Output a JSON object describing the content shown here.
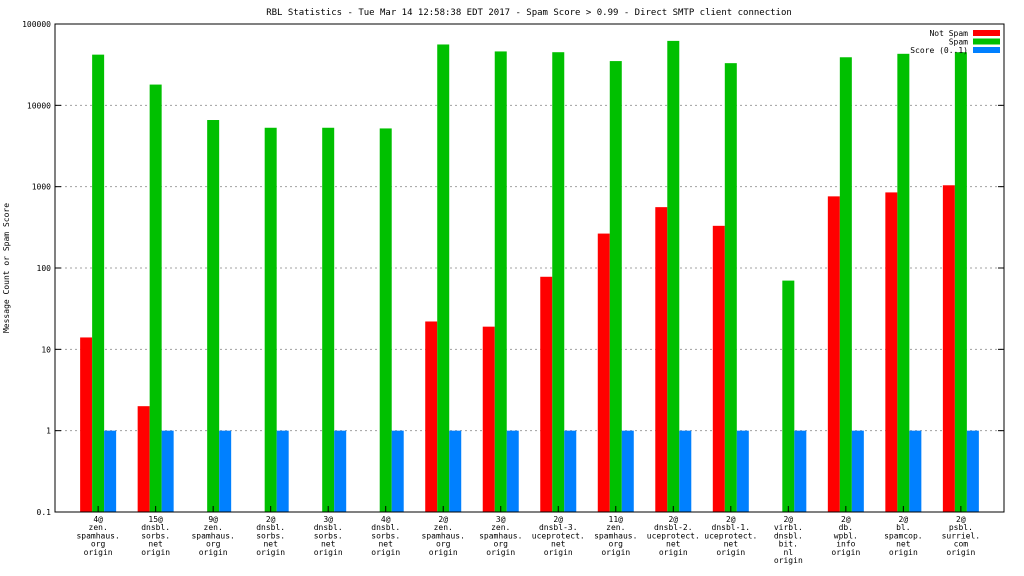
{
  "chart_data": {
    "type": "bar",
    "title": "RBL Statistics - Tue Mar 14 12:58:38 EDT 2017 - Spam Score > 0.99 - Direct SMTP client connection",
    "xlabel": "",
    "ylabel": "Message Count or Spam Score",
    "yscale": "log",
    "ylim": [
      0.1,
      100000
    ],
    "yticks": [
      "0.1",
      "1",
      "10",
      "100",
      "1000",
      "10000",
      "100000"
    ],
    "grid": true,
    "legend_position": "top-right",
    "categories": [
      [
        "4@",
        "zen.",
        "spamhaus.",
        "org",
        "origin"
      ],
      [
        "15@",
        "dnsbl.",
        "sorbs.",
        "net",
        "origin"
      ],
      [
        "9@",
        "zen.",
        "spamhaus.",
        "org",
        "origin"
      ],
      [
        "2@",
        "dnsbl.",
        "sorbs.",
        "net",
        "origin"
      ],
      [
        "3@",
        "dnsbl.",
        "sorbs.",
        "net",
        "origin"
      ],
      [
        "4@",
        "dnsbl.",
        "sorbs.",
        "net",
        "origin"
      ],
      [
        "2@",
        "zen.",
        "spamhaus.",
        "org",
        "origin"
      ],
      [
        "3@",
        "zen.",
        "spamhaus.",
        "org",
        "origin"
      ],
      [
        "2@",
        "dnsbl-3.",
        "uceprotect.",
        "net",
        "origin"
      ],
      [
        "11@",
        "zen.",
        "spamhaus.",
        "org",
        "origin"
      ],
      [
        "2@",
        "dnsbl-2.",
        "uceprotect.",
        "net",
        "origin"
      ],
      [
        "2@",
        "dnsbl-1.",
        "uceprotect.",
        "net",
        "origin"
      ],
      [
        "2@",
        "virbl.",
        "dnsbl.",
        "bit.",
        "nl",
        "origin"
      ],
      [
        "2@",
        "db.",
        "wpbl.",
        "info",
        "origin"
      ],
      [
        "2@",
        "bl.",
        "spamcop.",
        "net",
        "origin"
      ],
      [
        "2@",
        "psbl.",
        "surriel.",
        "com",
        "origin"
      ]
    ],
    "series": [
      {
        "name": "Not Spam",
        "color": "#ff0000",
        "values": [
          14,
          2,
          null,
          null,
          null,
          null,
          22,
          19,
          78,
          265,
          560,
          330,
          null,
          760,
          850,
          1040
        ]
      },
      {
        "name": "Spam",
        "color": "#00c000",
        "values": [
          42000,
          18000,
          6600,
          5300,
          5300,
          5200,
          56000,
          46000,
          45000,
          35000,
          62000,
          33000,
          70,
          39000,
          43000,
          45000
        ]
      },
      {
        "name": "Score (0..1)",
        "color": "#0080ff",
        "values": [
          1,
          1,
          1,
          1,
          1,
          1,
          1,
          1,
          1,
          1,
          1,
          1,
          1,
          1,
          1,
          1
        ]
      }
    ]
  }
}
